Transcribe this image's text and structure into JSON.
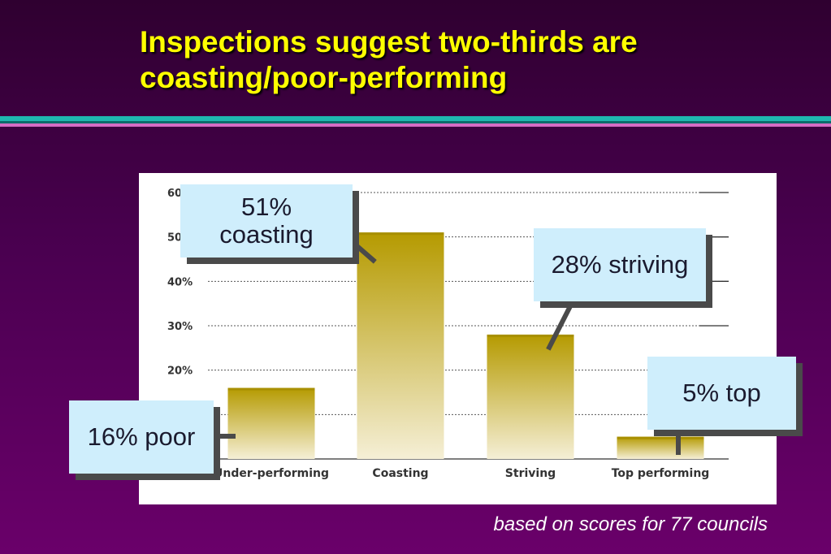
{
  "slide": {
    "title": "Inspections suggest two-thirds are coasting/poor-performing",
    "footnote": "based on scores for 77 councils"
  },
  "callouts": {
    "coasting": "51% coasting",
    "striving": "28% striving",
    "top": "5% top",
    "poor": "16% poor"
  },
  "colors": {
    "background": "#4a0050",
    "title": "#ffff00",
    "bar_top": "#b59a00",
    "bar_bottom": "#f5efd6",
    "callout": "#cfeefc"
  },
  "chart_data": {
    "type": "bar",
    "categories": [
      "Under-performing",
      "Coasting",
      "Striving",
      "Top performing"
    ],
    "values": [
      16,
      51,
      28,
      5
    ],
    "ytick_labels": [
      "60%",
      "50%",
      "40%",
      "30%",
      "20%"
    ],
    "ylim": [
      0,
      60
    ],
    "grid": true,
    "title": "",
    "xlabel": "",
    "ylabel": ""
  }
}
